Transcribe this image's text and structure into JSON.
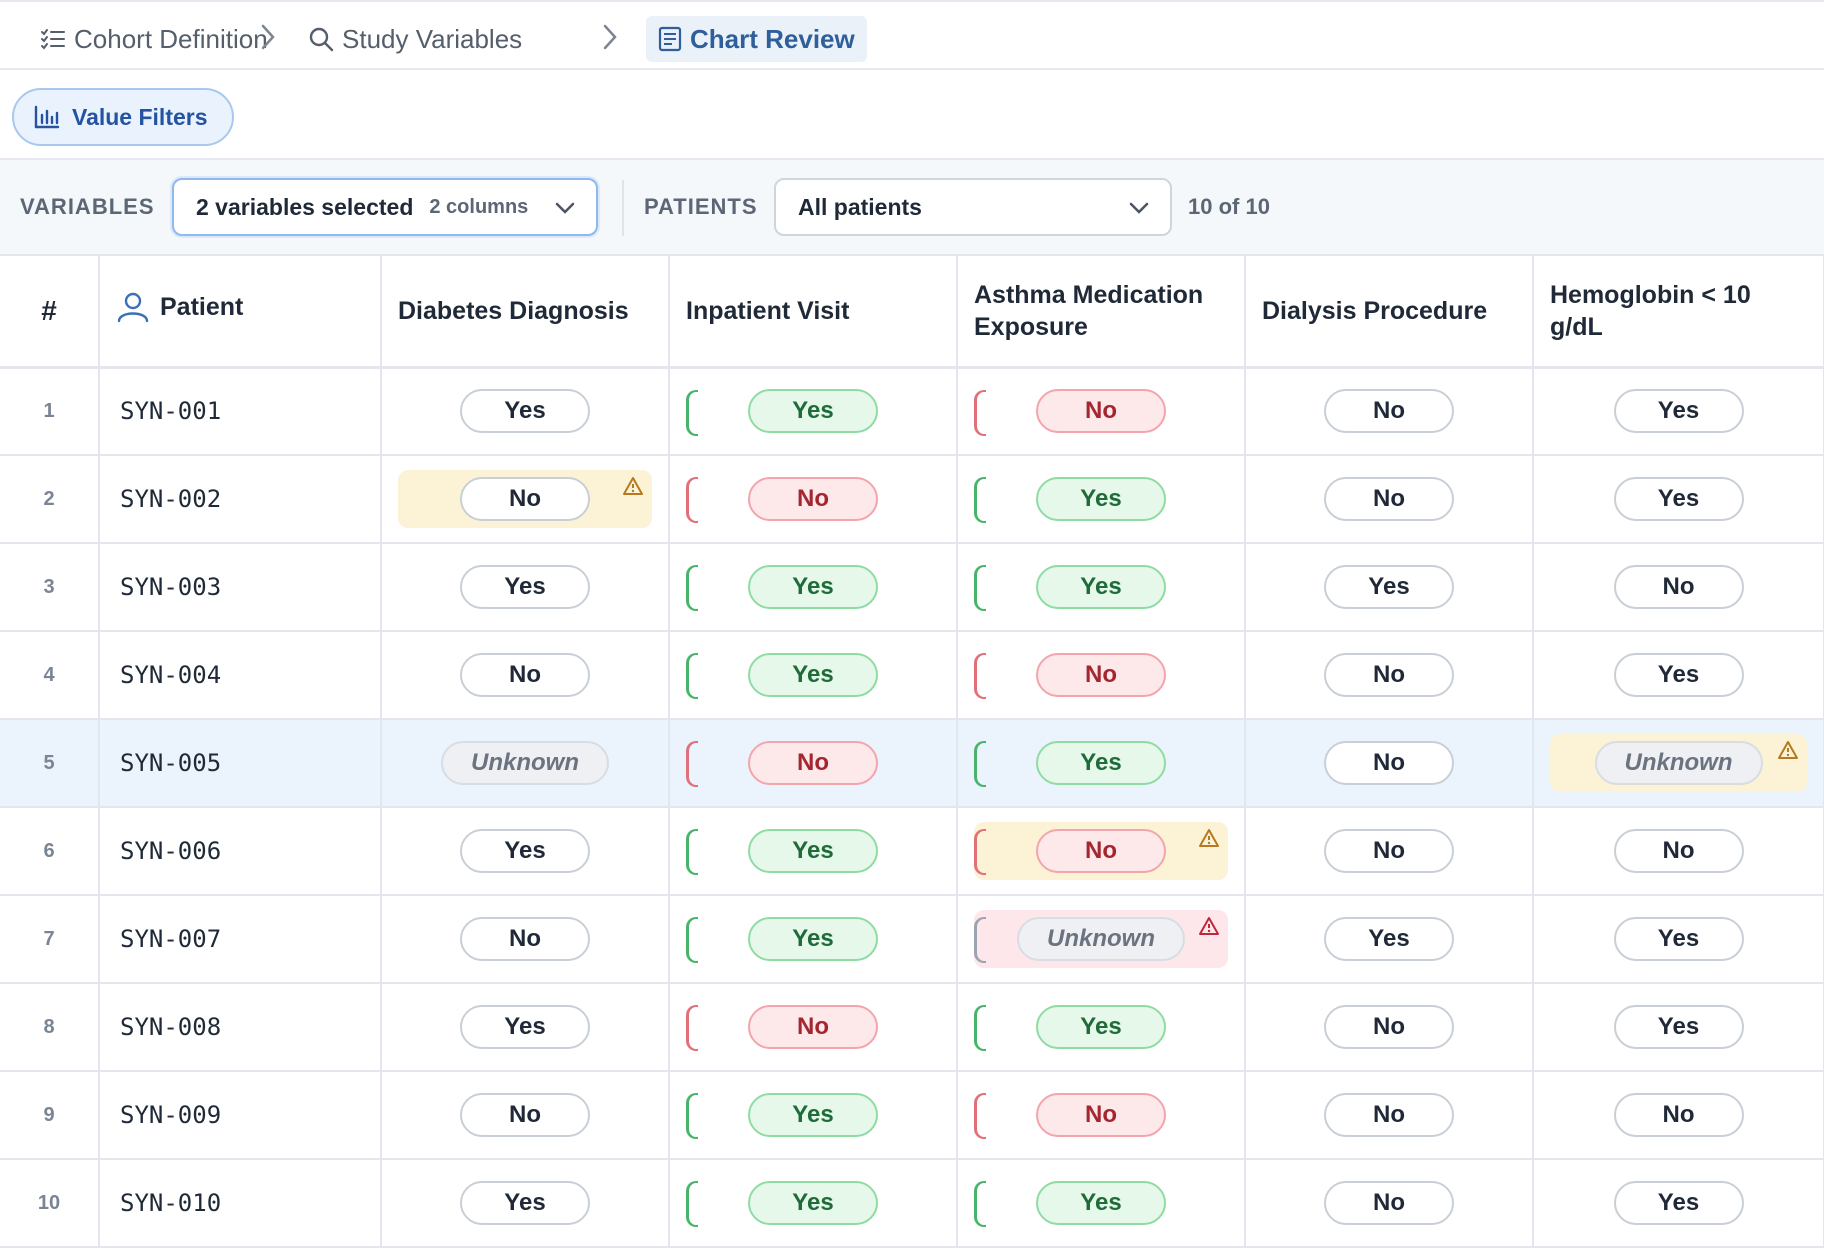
{
  "breadcrumb": [
    {
      "label": "Cohort Definition",
      "icon": "list-icon"
    },
    {
      "label": "Study Variables",
      "icon": "search-icon"
    },
    {
      "label": "Chart Review",
      "icon": "document-icon",
      "active": true
    }
  ],
  "value_filters": {
    "label": "Value Filters",
    "icon": "bar-chart-icon"
  },
  "controls": {
    "variables_label": "VARIABLES",
    "variables_value": "2 variables selected",
    "variables_sub": "2 columns",
    "patients_label": "PATIENTS",
    "patients_value": "All patients",
    "count": "10 of 10"
  },
  "table": {
    "num_header": "#",
    "patient_header": "Patient",
    "columns": [
      "Diabetes Diagnosis",
      "Inpatient Visit",
      "Asthma Medication Exposure",
      "Dialysis Procedure",
      "Hemoglobin < 10 g/dL"
    ],
    "rows": [
      {
        "num": "1",
        "id": "SYN-001",
        "values": [
          "Yes",
          "Yes",
          "No",
          "No",
          "Yes"
        ]
      },
      {
        "num": "2",
        "id": "SYN-002",
        "values": [
          "No",
          "No",
          "Yes",
          "No",
          "Yes"
        ]
      },
      {
        "num": "3",
        "id": "SYN-003",
        "values": [
          "Yes",
          "Yes",
          "Yes",
          "Yes",
          "No"
        ]
      },
      {
        "num": "4",
        "id": "SYN-004",
        "values": [
          "No",
          "Yes",
          "No",
          "No",
          "Yes"
        ]
      },
      {
        "num": "5",
        "id": "SYN-005",
        "values": [
          "Unknown",
          "No",
          "Yes",
          "No",
          "Unknown"
        ],
        "selected": true
      },
      {
        "num": "6",
        "id": "SYN-006",
        "values": [
          "Yes",
          "Yes",
          "No",
          "No",
          "No"
        ]
      },
      {
        "num": "7",
        "id": "SYN-007",
        "values": [
          "No",
          "Yes",
          "Unknown",
          "Yes",
          "Yes"
        ]
      },
      {
        "num": "8",
        "id": "SYN-008",
        "values": [
          "Yes",
          "No",
          "Yes",
          "No",
          "Yes"
        ]
      },
      {
        "num": "9",
        "id": "SYN-009",
        "values": [
          "No",
          "Yes",
          "No",
          "No",
          "No"
        ]
      },
      {
        "num": "10",
        "id": "SYN-010",
        "values": [
          "Yes",
          "Yes",
          "Yes",
          "No",
          "Yes"
        ]
      }
    ],
    "flags": [
      {
        "row": 1,
        "col": 0,
        "type": "warning"
      },
      {
        "row": 4,
        "col": 4,
        "type": "warning"
      },
      {
        "row": 5,
        "col": 2,
        "type": "warning"
      },
      {
        "row": 6,
        "col": 2,
        "type": "error"
      }
    ],
    "colored_columns": [
      1,
      2
    ]
  },
  "colors": {
    "accent": "#2f5f9b",
    "yes_green": "#1f6b3a",
    "no_red": "#a32630",
    "warning_bg": "#fcf3d6",
    "error_bg": "#fde7ea",
    "selected_row": "#ebf3fd"
  }
}
